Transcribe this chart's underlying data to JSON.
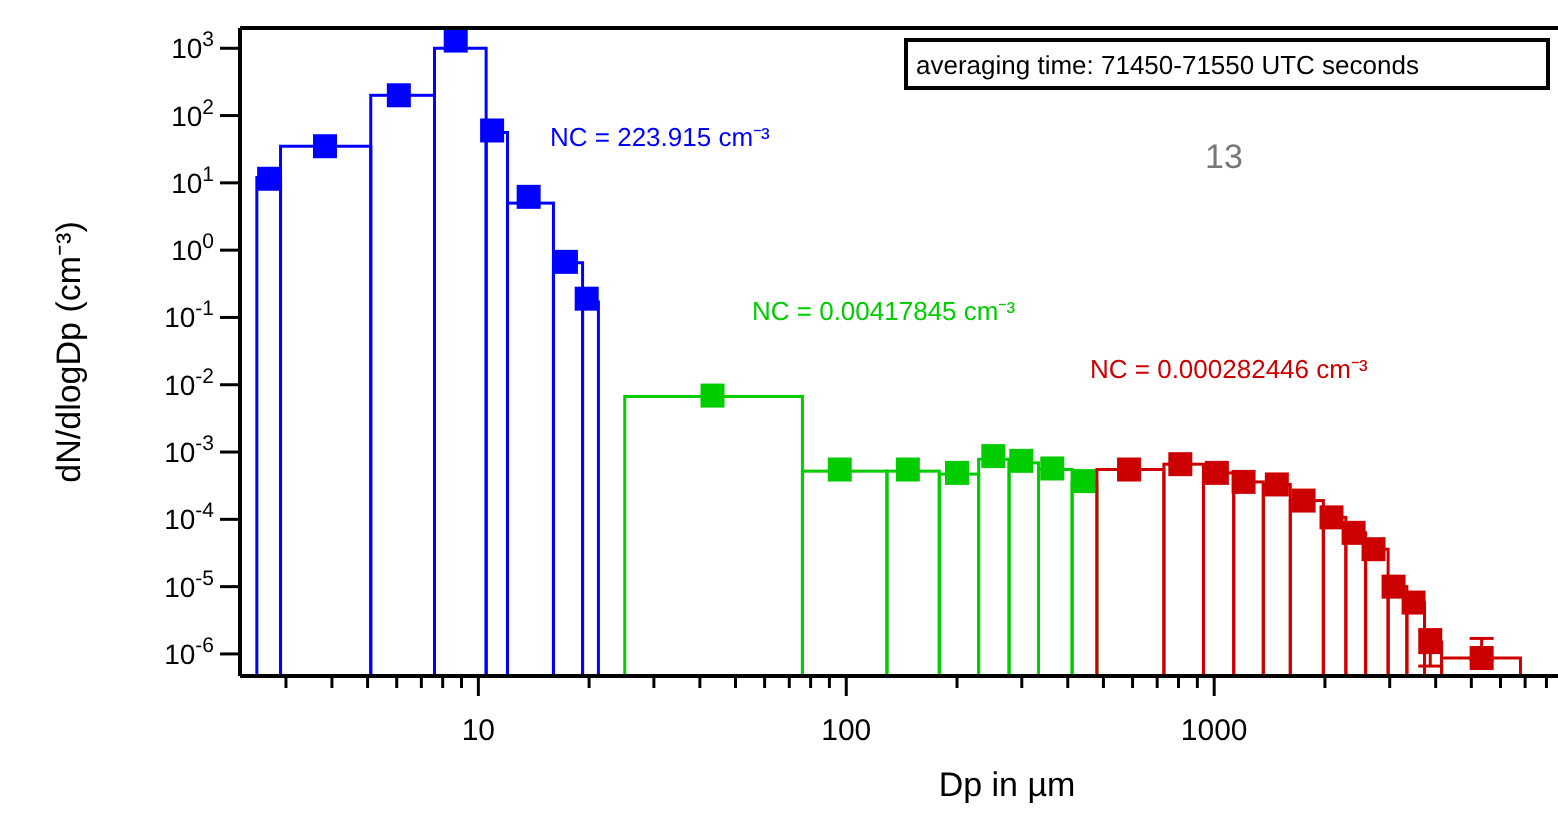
{
  "chart_data": {
    "type": "histogram",
    "xlabel": "Dp in µm",
    "ylabel": "dN/dlogDp (cm⁻³)",
    "log": "xy",
    "marker": "square",
    "grid": false,
    "xlim": [
      2.25,
      8600
    ],
    "ylim": [
      4.7e-07,
      2000
    ],
    "xticks": [
      {
        "value": 3,
        "label": null
      },
      {
        "value": 4,
        "label": null
      },
      {
        "value": 5,
        "label": null
      },
      {
        "value": 6,
        "label": null
      },
      {
        "value": 7,
        "label": null
      },
      {
        "value": 8,
        "label": null
      },
      {
        "value": 9,
        "label": null
      },
      10,
      {
        "value": 20,
        "label": null
      },
      {
        "value": 30,
        "label": null
      },
      {
        "value": 40,
        "label": null
      },
      {
        "value": 50,
        "label": null
      },
      {
        "value": 60,
        "label": null
      },
      {
        "value": 70,
        "label": null
      },
      {
        "value": 80,
        "label": null
      },
      {
        "value": 90,
        "label": null
      },
      100,
      {
        "value": 200,
        "label": null
      },
      {
        "value": 300,
        "label": null
      },
      {
        "value": 400,
        "label": null
      },
      {
        "value": 500,
        "label": null
      },
      {
        "value": 600,
        "label": null
      },
      {
        "value": 700,
        "label": null
      },
      {
        "value": 800,
        "label": null
      },
      {
        "value": 900,
        "label": null
      },
      1000,
      {
        "value": 2000,
        "label": null
      },
      {
        "value": 3000,
        "label": null
      },
      {
        "value": 4000,
        "label": null
      },
      {
        "value": 5000,
        "label": null
      },
      {
        "value": 6000,
        "label": null
      },
      {
        "value": 7000,
        "label": null
      },
      {
        "value": 8000,
        "label": null
      }
    ],
    "yticks": [
      {
        "value": 1e-06,
        "label": "10$^{-6}$"
      },
      {
        "value": 1e-05,
        "label": "10$^{-5}$"
      },
      {
        "value": 0.0001,
        "label": "10$^{-4}$"
      },
      {
        "value": 0.001,
        "label": "10$^{-3}$"
      },
      {
        "value": 0.01,
        "label": "10$^{-2}$"
      },
      {
        "value": 0.1,
        "label": "10$^{-1}$"
      },
      {
        "value": 1,
        "label": "10$^{0}$"
      },
      {
        "value": 10,
        "label": "10$^{1}$"
      },
      {
        "value": 100,
        "label": "10$^{2}$"
      },
      {
        "value": 1000,
        "label": "10$^{3}$"
      }
    ],
    "bins": [
      2.5,
      2.9,
      5.1,
      7.6,
      10.5,
      12,
      16,
      19.2,
      21.2,
      25,
      76,
      129,
      179,
      229,
      277,
      333,
      411,
      480,
      730,
      935,
      1130,
      1360,
      1610,
      1980,
      2280,
      2580,
      2970,
      3340,
      3730,
      4150,
      6800
    ],
    "values": [
      12,
      35,
      200,
      1000,
      56,
      5,
      0.65,
      0.17,
      null,
      0.0067,
      0.00052,
      0.00052,
      0.00047,
      0.00078,
      0.00069,
      0.00055,
      0.00035,
      0.00055,
      0.00066,
      0.00049,
      0.00036,
      0.00033,
      0.00019,
      0.000107,
      6.3e-05,
      3.6e-05,
      1e-05,
      5.8e-06,
      1.5e-06,
      8.7e-07
    ],
    "colors": [
      "#0000ff",
      "#0000ff",
      "#0000ff",
      "#0000ff",
      "#0000ff",
      "#0000ff",
      "#0000ff",
      "#0000ff",
      null,
      "#00cc00",
      "#00cc00",
      "#00cc00",
      "#00cc00",
      "#00cc00",
      "#00cc00",
      "#00cc00",
      "#00cc00",
      "#cc0000",
      "#cc0000",
      "#cc0000",
      "#cc0000",
      "#cc0000",
      "#cc0000",
      "#cc0000",
      "#cc0000",
      "#cc0000",
      "#cc0000",
      "#cc0000",
      "#cc0000",
      "#cc0000"
    ],
    "series": [
      {
        "type": "scatter",
        "color": "#0000ff",
        "x": [
          2.7,
          3.83,
          6.08,
          8.68,
          10.9,
          13.7,
          17.3,
          19.7
        ],
        "values": [
          11.5,
          35,
          200,
          1300,
          60,
          6.2,
          0.67,
          0.19
        ]
      },
      {
        "type": "scatter",
        "color": "#00cc00",
        "x": [
          43.3,
          96,
          147,
          200,
          251,
          299,
          363,
          442
        ],
        "values": [
          0.0069,
          0.00055,
          0.00055,
          0.00049,
          0.00087,
          0.00074,
          0.00057,
          0.00037
        ]
      },
      {
        "type": "scatter",
        "color": "#cc0000",
        "x": [
          587,
          809,
          1017,
          1202,
          1480,
          1750,
          2084,
          2393,
          2711,
          3073,
          3483,
          3866,
          5333
        ],
        "values": [
          0.00055,
          0.00066,
          0.00049,
          0.00036,
          0.00033,
          0.00019,
          0.000107,
          6.3e-05,
          3.6e-05,
          1e-05,
          5.8e-06,
          1.5e-06,
          8.7e-07
        ],
        "errors": [
          null,
          null,
          null,
          null,
          null,
          null,
          null,
          null,
          null,
          null,
          null,
          [
            6.6e-07,
            2.3e-06
          ],
          [
            8.3e-07,
            1.7e-06
          ]
        ]
      }
    ],
    "annotations": [
      "averaging time: 71450-71550 UTC seconds",
      "13",
      "NC = 223.915 cm⁻³",
      "NC = 0.00417845 cm⁻³",
      "NC = 0.000282446 cm⁻³"
    ]
  }
}
